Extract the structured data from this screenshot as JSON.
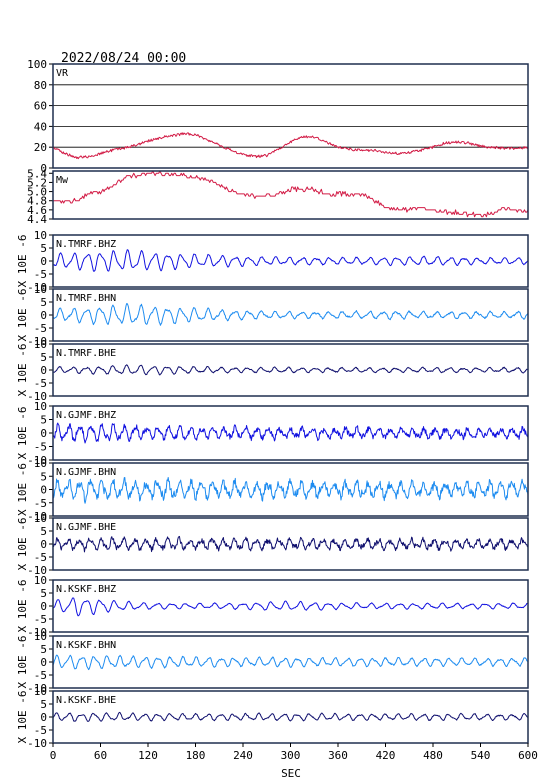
{
  "header": {
    "datetime": "2022/08/24 00:00"
  },
  "x_axis": {
    "label": "SEC",
    "min": 0,
    "max": 600,
    "ticks": [
      "0",
      "60",
      "120",
      "180",
      "240",
      "300",
      "360",
      "420",
      "480",
      "540",
      "600"
    ]
  },
  "seis_ylabel": "X 10E -6",
  "colors": {
    "vr": "#d21c46",
    "mw": "#d21c46",
    "bhz": "#1212e0",
    "bhn": "#1e8cf0",
    "bhe": "#10106e",
    "axes": "#1f2f4f"
  },
  "chart_data": [
    {
      "type": "line",
      "panel": "vr",
      "label": "VR",
      "ylim": [
        0,
        100
      ],
      "yticks": [
        "100",
        "80",
        "60",
        "40",
        "20",
        "0"
      ],
      "grid": true,
      "x": [
        0,
        15,
        30,
        45,
        60,
        75,
        90,
        105,
        120,
        135,
        150,
        165,
        180,
        195,
        210,
        225,
        240,
        255,
        270,
        285,
        300,
        315,
        330,
        345,
        360,
        375,
        390,
        405,
        420,
        435,
        450,
        465,
        480,
        495,
        510,
        525,
        540,
        555,
        570,
        585,
        600
      ],
      "values": [
        20,
        14,
        10,
        11,
        14,
        17,
        19,
        22,
        26,
        29,
        31,
        33,
        32,
        27,
        22,
        17,
        13,
        11,
        12,
        18,
        25,
        30,
        30,
        25,
        20,
        18,
        17,
        17,
        15,
        14,
        15,
        17,
        20,
        24,
        25,
        24,
        21,
        20,
        19,
        19,
        20
      ]
    },
    {
      "type": "line",
      "panel": "mw",
      "label": "Mw",
      "ylim": [
        4.4,
        5.45
      ],
      "yticks": [
        "5.4",
        "5.2",
        "5.0",
        "4.8",
        "4.6",
        "4.4"
      ],
      "grid": false,
      "x": [
        0,
        15,
        30,
        45,
        60,
        75,
        90,
        105,
        120,
        135,
        150,
        165,
        180,
        195,
        210,
        225,
        240,
        255,
        270,
        285,
        300,
        315,
        330,
        345,
        360,
        375,
        390,
        405,
        420,
        435,
        450,
        465,
        480,
        495,
        510,
        525,
        540,
        555,
        570,
        585,
        600
      ],
      "values": [
        4.8,
        4.8,
        4.8,
        4.95,
        5.0,
        5.1,
        5.3,
        5.35,
        5.4,
        5.4,
        5.38,
        5.37,
        5.3,
        5.25,
        5.15,
        5.0,
        4.95,
        4.9,
        4.9,
        4.95,
        5.05,
        5.05,
        5.05,
        4.95,
        4.95,
        4.95,
        4.95,
        4.8,
        4.65,
        4.6,
        4.6,
        4.65,
        4.6,
        4.55,
        4.55,
        4.5,
        4.5,
        4.5,
        4.65,
        4.6,
        4.55
      ]
    },
    {
      "type": "line",
      "panel": "seismogram",
      "station": "N.TMRF.BHZ",
      "ylim": [
        -10,
        10
      ],
      "yticks": [
        "10",
        "5",
        "0",
        "-5",
        "-10"
      ],
      "amplitude_envelope": [
        2.2,
        2.6,
        3.1,
        3.3,
        3.0,
        2.5,
        2.1,
        1.8,
        1.5,
        1.3,
        1.2,
        1.1,
        1.1,
        1.1,
        1.2,
        1.3,
        1.4,
        1.2,
        1.0,
        1.0,
        1.0
      ],
      "period_s": 17,
      "noise": 0.2
    },
    {
      "type": "line",
      "panel": "seismogram",
      "station": "N.TMRF.BHN",
      "ylim": [
        -10,
        10
      ],
      "yticks": [
        "10",
        "5",
        "0",
        "-5",
        "-10"
      ],
      "amplitude_envelope": [
        1.8,
        2.2,
        2.8,
        3.2,
        3.1,
        2.6,
        2.1,
        1.7,
        1.4,
        1.2,
        1.1,
        1.0,
        1.0,
        1.1,
        1.2,
        1.1,
        1.0,
        1.0,
        1.0,
        1.0,
        1.2
      ],
      "period_s": 17,
      "noise": 0.3
    },
    {
      "type": "line",
      "panel": "seismogram",
      "station": "N.TMRF.BHE",
      "ylim": [
        -10,
        10
      ],
      "yticks": [
        "10",
        "5",
        "0",
        "-5",
        "-10"
      ],
      "amplitude_envelope": [
        1.0,
        1.0,
        1.2,
        1.4,
        1.5,
        1.2,
        1.0,
        0.9,
        0.8,
        0.8,
        0.8,
        0.7,
        0.7,
        0.7,
        0.7,
        0.7,
        0.8,
        0.7,
        0.7,
        0.7,
        0.8
      ],
      "period_s": 17,
      "noise": 0.2
    },
    {
      "type": "line",
      "panel": "seismogram",
      "station": "N.GJMF.BHZ",
      "ylim": [
        -10,
        10
      ],
      "yticks": [
        "10",
        "5",
        "0",
        "-5",
        "-10"
      ],
      "amplitude_envelope": [
        2.2,
        2.4,
        2.6,
        2.2,
        2.0,
        2.0,
        1.8,
        1.7,
        1.6,
        1.6,
        1.5,
        1.5,
        1.4,
        1.4,
        1.3,
        1.3,
        1.3,
        1.3,
        1.2,
        1.2,
        1.5
      ],
      "period_s": 14,
      "noise": 1.0
    },
    {
      "type": "line",
      "panel": "seismogram",
      "station": "N.GJMF.BHN",
      "ylim": [
        -10,
        10
      ],
      "yticks": [
        "10",
        "5",
        "0",
        "-5",
        "-10"
      ],
      "amplitude_envelope": [
        2.6,
        2.8,
        3.0,
        2.8,
        2.6,
        2.5,
        2.4,
        2.3,
        2.3,
        2.2,
        2.2,
        2.2,
        2.1,
        2.1,
        2.1,
        2.1,
        2.2,
        2.2,
        2.3,
        2.4,
        2.6
      ],
      "period_s": 14,
      "noise": 1.5
    },
    {
      "type": "line",
      "panel": "seismogram",
      "station": "N.GJMF.BHE",
      "ylim": [
        -10,
        10
      ],
      "yticks": [
        "10",
        "5",
        "0",
        "-5",
        "-10"
      ],
      "amplitude_envelope": [
        1.5,
        1.7,
        1.8,
        1.8,
        1.6,
        1.6,
        1.5,
        1.6,
        1.7,
        1.6,
        1.5,
        1.5,
        1.4,
        1.4,
        1.4,
        1.4,
        1.4,
        1.4,
        1.4,
        1.4,
        1.5
      ],
      "period_s": 14,
      "noise": 0.9
    },
    {
      "type": "line",
      "panel": "seismogram",
      "station": "N.KSKF.BHZ",
      "ylim": [
        -10,
        10
      ],
      "yticks": [
        "10",
        "5",
        "0",
        "-5",
        "-10"
      ],
      "amplitude_envelope": [
        1.5,
        3.0,
        2.2,
        1.4,
        1.0,
        0.9,
        0.8,
        0.9,
        1.0,
        1.3,
        1.4,
        1.2,
        1.0,
        0.9,
        0.9,
        0.9,
        0.9,
        0.8,
        0.8,
        0.8,
        0.9
      ],
      "period_s": 18,
      "noise": 0.15
    },
    {
      "type": "line",
      "panel": "seismogram",
      "station": "N.KSKF.BHN",
      "ylim": [
        -10,
        10
      ],
      "yticks": [
        "10",
        "5",
        "0",
        "-5",
        "-10"
      ],
      "amplitude_envelope": [
        2.0,
        2.2,
        2.0,
        1.8,
        1.7,
        1.6,
        1.5,
        1.5,
        1.4,
        1.4,
        1.4,
        1.3,
        1.3,
        1.3,
        1.3,
        1.3,
        1.3,
        1.2,
        1.2,
        1.2,
        1.3
      ],
      "period_s": 16,
      "noise": 0.25
    },
    {
      "type": "line",
      "panel": "seismogram",
      "station": "N.KSKF.BHE",
      "ylim": [
        -10,
        10
      ],
      "yticks": [
        "10",
        "5",
        "0",
        "-5",
        "-10"
      ],
      "amplitude_envelope": [
        1.2,
        1.3,
        1.3,
        1.2,
        1.1,
        1.0,
        1.0,
        1.0,
        1.0,
        1.1,
        1.1,
        1.0,
        1.0,
        1.0,
        1.0,
        1.0,
        1.0,
        1.0,
        0.9,
        0.9,
        1.0
      ],
      "period_s": 16,
      "noise": 0.2
    }
  ]
}
